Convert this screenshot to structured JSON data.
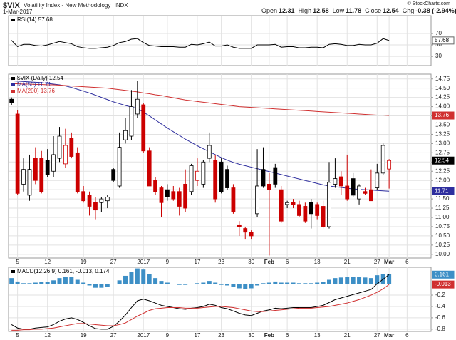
{
  "header": {
    "symbol": "$VIX",
    "name": "Volatility Index - New Methodology",
    "exchange": "INDX",
    "date": "1-Mar-2017",
    "quote": [
      [
        "Open",
        "12.31"
      ],
      [
        "High",
        "12.58"
      ],
      [
        "Low",
        "11.78"
      ],
      [
        "Close",
        "12.54"
      ],
      [
        "Chg",
        "-0.38 (-2.94%)"
      ]
    ],
    "credit": "© StockCharts.com"
  },
  "x_axis": {
    "xlim": [
      -0.5,
      70
    ],
    "xticks": [
      {
        "value": 1,
        "label": "5"
      },
      {
        "value": 6,
        "label": "12"
      },
      {
        "value": 12,
        "label": "19"
      },
      {
        "value": 17,
        "label": "27"
      },
      {
        "value": 22,
        "label": "2017"
      },
      {
        "value": 26,
        "label": "9"
      },
      {
        "value": 31,
        "label": "17"
      },
      {
        "value": 35,
        "label": "23"
      },
      {
        "value": 40,
        "label": "30"
      },
      {
        "value": 43,
        "label": "Feb"
      },
      {
        "value": 46,
        "label": "6"
      },
      {
        "value": 51,
        "label": "13"
      },
      {
        "value": 56,
        "label": "21"
      },
      {
        "value": 61,
        "label": "27"
      },
      {
        "value": 63,
        "label": "Mar"
      },
      {
        "value": 66,
        "label": "6"
      }
    ]
  },
  "chart_data": [
    {
      "type": "line",
      "label": "RSI(14) 57.68",
      "ylim": [
        14,
        101
      ],
      "yticks": [
        30,
        50,
        70
      ],
      "color": "#000000",
      "last_label": "57.68",
      "values": [
        58,
        47,
        51,
        51,
        49,
        48,
        50,
        53,
        56,
        54,
        52,
        47,
        45,
        44,
        44,
        45,
        46,
        49,
        54,
        56,
        60,
        61,
        54,
        49,
        48,
        47,
        47,
        47,
        46,
        46,
        51,
        50,
        52,
        55,
        48,
        48,
        50,
        46,
        44,
        44,
        44,
        50,
        50,
        50,
        51,
        46,
        47,
        47,
        45,
        45,
        46,
        46,
        45,
        51,
        52,
        51,
        49,
        49,
        51,
        50,
        50,
        53,
        61,
        57.68
      ]
    },
    {
      "type": "candlestick",
      "label": "$VIX (Daily) 12.54",
      "last_label": "12.54",
      "up_color": "#000000",
      "down_color": "#cc0000",
      "ylim": [
        9.9,
        14.88
      ],
      "yticks": [
        {
          "value": 10,
          "label": "10.00"
        },
        10.25,
        {
          "value": 10.5,
          "label": "10.50"
        },
        10.75,
        {
          "value": 11,
          "label": "11.00"
        },
        11.25,
        {
          "value": 11.5,
          "label": "11.50"
        },
        11.75,
        {
          "value": 12,
          "label": "12.00"
        },
        12.25,
        {
          "value": 12.5,
          "label": "12.50"
        },
        12.75,
        {
          "value": 13,
          "label": "13.00"
        },
        13.25,
        {
          "value": 13.5,
          "label": "13.50"
        },
        13.75,
        {
          "value": 14,
          "label": "14.00"
        },
        14.25,
        {
          "value": 14.5,
          "label": "14.50"
        },
        14.75
      ],
      "open": [
        14.2,
        13.8,
        11.9,
        11.6,
        12.6,
        12.6,
        12.55,
        12.25,
        12.6,
        12.45,
        13.15,
        12.75,
        11.7,
        11.6,
        11.4,
        11.4,
        11.45,
        12.3,
        11.85,
        13.1,
        13.2,
        13.8,
        14.05,
        12.8,
        12.0,
        11.8,
        11.75,
        11.7,
        11.7,
        11.9,
        11.7,
        12.0,
        11.9,
        12.6,
        12.55,
        12.5,
        12.3,
        11.8,
        10.8,
        10.7,
        10.6,
        11.1,
        12.3,
        11.9,
        12.35,
        11.75,
        11.35,
        11.4,
        11.35,
        11.3,
        11.4,
        11.35,
        11.3,
        10.75,
        11.9,
        12.1,
        11.85,
        12.05,
        11.5,
        11.7,
        11.75,
        11.8,
        12.2,
        12.31
      ],
      "high": [
        14.25,
        13.9,
        12.6,
        12.7,
        12.9,
        12.8,
        12.85,
        13.2,
        13.45,
        13.4,
        13.3,
        12.9,
        11.85,
        11.7,
        11.55,
        11.55,
        11.6,
        12.35,
        13.3,
        13.7,
        14.45,
        14.7,
        14.1,
        12.9,
        12.1,
        11.85,
        11.9,
        11.85,
        11.8,
        12.3,
        12.45,
        12.6,
        12.55,
        13.3,
        12.7,
        12.6,
        12.4,
        11.9,
        10.9,
        10.75,
        10.65,
        12.85,
        12.9,
        12.2,
        12.45,
        11.85,
        11.45,
        11.5,
        11.45,
        11.4,
        11.5,
        11.4,
        11.45,
        12.5,
        12.6,
        12.25,
        12.7,
        12.2,
        11.9,
        11.8,
        12.3,
        12.45,
        13.0,
        12.58
      ],
      "low": [
        14.05,
        11.6,
        11.7,
        11.45,
        11.9,
        11.65,
        12.1,
        12.1,
        12.5,
        12.35,
        12.6,
        11.65,
        11.4,
        11.05,
        10.95,
        11.15,
        11.25,
        11.95,
        11.8,
        13.0,
        13.1,
        13.7,
        12.75,
        11.85,
        11.6,
        11.0,
        11.45,
        11.45,
        11.05,
        11.15,
        11.6,
        11.85,
        11.8,
        12.5,
        11.4,
        11.65,
        11.75,
        11.1,
        10.5,
        10.4,
        10.4,
        11.0,
        11.8,
        9.97,
        11.8,
        10.85,
        11.25,
        11.25,
        11.0,
        10.85,
        10.7,
        10.95,
        10.7,
        10.7,
        11.8,
        11.6,
        11.45,
        11.55,
        11.35,
        11.6,
        11.45,
        11.75,
        12.15,
        11.78
      ],
      "close": [
        14.1,
        11.65,
        12.3,
        12.3,
        12.0,
        11.7,
        12.15,
        12.7,
        13.2,
        12.95,
        12.65,
        11.7,
        11.45,
        11.3,
        11.2,
        11.5,
        11.55,
        12.0,
        12.9,
        13.35,
        14.0,
        14.2,
        12.8,
        11.85,
        11.7,
        11.4,
        11.55,
        11.5,
        11.3,
        11.25,
        12.4,
        12.25,
        12.5,
        12.95,
        11.5,
        11.7,
        11.8,
        11.15,
        10.75,
        10.6,
        10.5,
        11.85,
        11.85,
        11.75,
        11.9,
        10.9,
        11.4,
        11.35,
        11.05,
        10.9,
        11.1,
        11.05,
        10.75,
        11.95,
        12.05,
        11.85,
        11.5,
        11.6,
        11.85,
        11.65,
        11.45,
        12.2,
        12.95,
        12.54
      ],
      "overlays": [
        {
          "label": "MA(50) 11.71",
          "last_label": "11.71",
          "color": "#2e2e9e",
          "values": [
            14.7,
            14.69,
            14.68,
            14.67,
            14.66,
            14.65,
            14.63,
            14.61,
            14.59,
            14.56,
            14.52,
            14.47,
            14.42,
            14.37,
            14.31,
            14.25,
            14.19,
            14.13,
            14.08,
            14.03,
            13.99,
            13.95,
            13.85,
            13.75,
            13.64,
            13.53,
            13.42,
            13.32,
            13.22,
            13.12,
            13.03,
            12.94,
            12.86,
            12.78,
            12.7,
            12.62,
            12.55,
            12.49,
            12.44,
            12.4,
            12.36,
            12.32,
            12.28,
            12.24,
            12.2,
            12.16,
            12.12,
            12.08,
            12.04,
            12.0,
            11.96,
            11.92,
            11.88,
            11.85,
            11.83,
            11.81,
            11.79,
            11.77,
            11.76,
            11.75,
            11.74,
            11.73,
            11.72,
            11.71
          ]
        },
        {
          "label": "MA(200) 13.76",
          "last_label": "13.76",
          "color": "#d03030",
          "values": [
            14.62,
            14.62,
            14.61,
            14.61,
            14.6,
            14.6,
            14.59,
            14.59,
            14.58,
            14.57,
            14.56,
            14.55,
            14.54,
            14.53,
            14.52,
            14.51,
            14.5,
            14.48,
            14.46,
            14.44,
            14.42,
            14.4,
            14.37,
            14.35,
            14.32,
            14.3,
            14.27,
            14.24,
            14.21,
            14.18,
            14.16,
            14.14,
            14.12,
            14.1,
            14.08,
            14.06,
            14.04,
            14.02,
            14.0,
            13.99,
            13.98,
            13.97,
            13.96,
            13.95,
            13.94,
            13.93,
            13.92,
            13.91,
            13.9,
            13.89,
            13.88,
            13.87,
            13.86,
            13.85,
            13.84,
            13.83,
            13.82,
            13.81,
            13.8,
            13.79,
            13.78,
            13.77,
            13.77,
            13.76
          ]
        }
      ]
    },
    {
      "type": "macd",
      "label": "MACD(12,26,9) 0.161, -0.013, 0.174",
      "ylim": [
        -0.84,
        0.29
      ],
      "yticks": [
        -0.8,
        -0.6,
        -0.4,
        -0.2
      ],
      "series": [
        {
          "color": "#000000",
          "last_label": "0.161",
          "values": [
            -0.72,
            -0.78,
            -0.8,
            -0.8,
            -0.78,
            -0.77,
            -0.76,
            -0.72,
            -0.66,
            -0.62,
            -0.6,
            -0.63,
            -0.68,
            -0.74,
            -0.79,
            -0.8,
            -0.8,
            -0.75,
            -0.66,
            -0.55,
            -0.42,
            -0.3,
            -0.27,
            -0.3,
            -0.34,
            -0.38,
            -0.4,
            -0.42,
            -0.44,
            -0.45,
            -0.43,
            -0.42,
            -0.4,
            -0.36,
            -0.38,
            -0.42,
            -0.44,
            -0.48,
            -0.52,
            -0.55,
            -0.56,
            -0.52,
            -0.48,
            -0.46,
            -0.43,
            -0.44,
            -0.43,
            -0.42,
            -0.42,
            -0.42,
            -0.42,
            -0.4,
            -0.38,
            -0.33,
            -0.28,
            -0.25,
            -0.22,
            -0.19,
            -0.16,
            -0.13,
            -0.1,
            0.0,
            0.08,
            0.161
          ]
        },
        {
          "color": "#d03030",
          "last_label": "-0.013",
          "values": [
            -0.82,
            -0.82,
            -0.81,
            -0.81,
            -0.8,
            -0.8,
            -0.79,
            -0.78,
            -0.76,
            -0.74,
            -0.72,
            -0.7,
            -0.7,
            -0.71,
            -0.72,
            -0.73,
            -0.74,
            -0.74,
            -0.72,
            -0.69,
            -0.63,
            -0.57,
            -0.52,
            -0.47,
            -0.44,
            -0.43,
            -0.42,
            -0.42,
            -0.42,
            -0.43,
            -0.43,
            -0.43,
            -0.42,
            -0.41,
            -0.4,
            -0.4,
            -0.41,
            -0.42,
            -0.44,
            -0.46,
            -0.48,
            -0.49,
            -0.49,
            -0.48,
            -0.47,
            -0.46,
            -0.45,
            -0.44,
            -0.43,
            -0.43,
            -0.43,
            -0.42,
            -0.41,
            -0.4,
            -0.38,
            -0.36,
            -0.34,
            -0.31,
            -0.28,
            -0.24,
            -0.2,
            -0.15,
            -0.09,
            -0.013
          ]
        }
      ],
      "histogram": {
        "color": "#3d8fc6",
        "values": [
          0.1,
          0.04,
          0.01,
          0.01,
          0.02,
          0.03,
          0.03,
          0.06,
          0.1,
          0.12,
          0.12,
          0.07,
          0.02,
          -0.03,
          -0.07,
          -0.07,
          -0.06,
          -0.01,
          0.06,
          0.14,
          0.21,
          0.27,
          0.25,
          0.17,
          0.1,
          0.05,
          0.02,
          0.0,
          -0.02,
          -0.02,
          0.0,
          0.01,
          0.02,
          0.05,
          0.02,
          -0.02,
          -0.03,
          -0.06,
          -0.08,
          -0.09,
          -0.08,
          -0.03,
          0.01,
          0.02,
          0.04,
          0.02,
          0.02,
          0.02,
          0.01,
          0.01,
          0.01,
          0.02,
          0.03,
          0.07,
          0.1,
          0.11,
          0.12,
          0.12,
          0.12,
          0.11,
          0.1,
          0.15,
          0.17,
          0.174
        ]
      }
    }
  ]
}
